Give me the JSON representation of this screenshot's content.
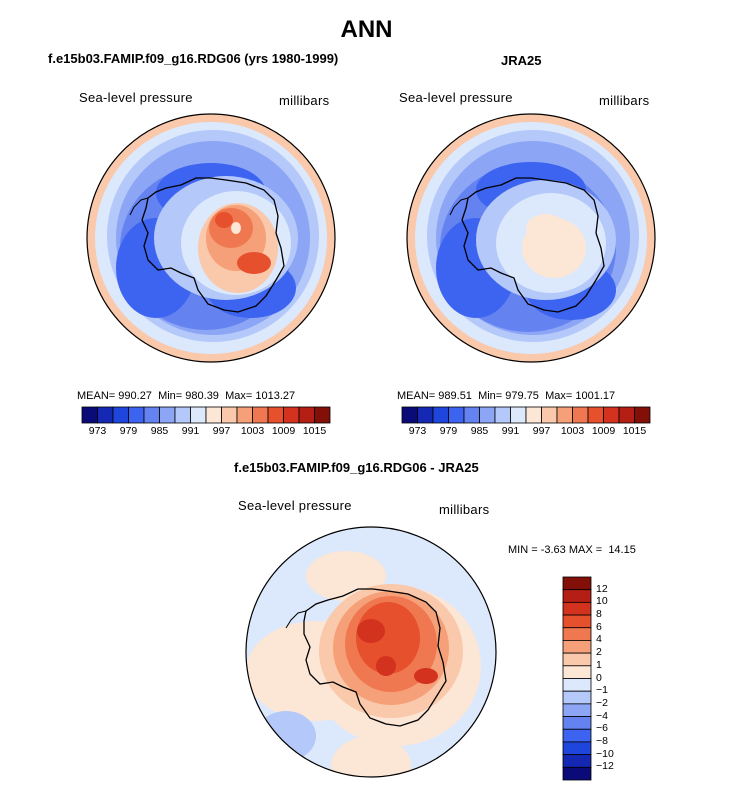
{
  "figure": {
    "title": "ANN"
  },
  "panels": [
    {
      "title": "f.e15b03.FAMIP.f09_g16.RDG06 (yrs 1980-1999)",
      "variable": "Sea-level pressure",
      "units": "millibars",
      "stats": {
        "mean_label": "MEAN=",
        "mean": "990.27",
        "min_label": "Min=",
        "min": "980.39",
        "max_label": "Max=",
        "max": "1013.27"
      }
    },
    {
      "title": "JRA25",
      "variable": "Sea-level pressure",
      "units": "millibars",
      "stats": {
        "mean_label": "MEAN=",
        "mean": "989.51",
        "min_label": "Min=",
        "min": "979.75",
        "max_label": "Max=",
        "max": "1001.17"
      }
    },
    {
      "title": "f.e15b03.FAMIP.f09_g16.RDG06 - JRA25",
      "variable": "Sea-level pressure",
      "units": "millibars",
      "stats": {
        "min_label": "MIN =",
        "min": "-3.63",
        "max_label": "MAX =",
        "max": "14.15"
      }
    }
  ],
  "colorbars": {
    "horizontal": {
      "colors": [
        "#0a0a78",
        "#1428b4",
        "#1e46dc",
        "#3c64f0",
        "#6482f0",
        "#8ca5f5",
        "#b4c8fa",
        "#dce8fc",
        "#fce6d6",
        "#fac8aa",
        "#f5a078",
        "#f07850",
        "#e6502d",
        "#d2321e",
        "#b41e14",
        "#821008"
      ],
      "labels": [
        "973",
        "979",
        "985",
        "991",
        "997",
        "1003",
        "1009",
        "1015"
      ]
    },
    "vertical": {
      "colors_top_to_bottom": [
        "#821008",
        "#b41e14",
        "#d2321e",
        "#e6502d",
        "#f07850",
        "#f5a078",
        "#fac8aa",
        "#fce6d6",
        "#dce8fc",
        "#b4c8fa",
        "#8ca5f5",
        "#6482f0",
        "#3c64f0",
        "#1e46dc",
        "#1428b4",
        "#0a0a78"
      ],
      "labels_top_to_bottom": [
        "12",
        "10",
        "8",
        "6",
        "4",
        "2",
        "1",
        "0",
        "−1",
        "−2",
        "−4",
        "−6",
        "−8",
        "−10",
        "−12"
      ]
    }
  }
}
